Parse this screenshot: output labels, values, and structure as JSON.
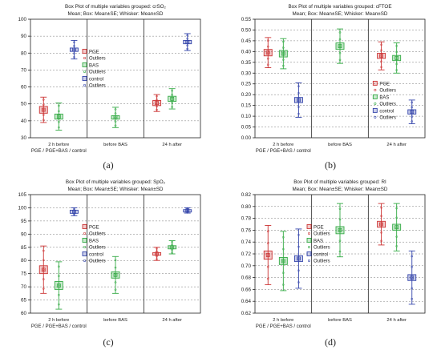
{
  "figure": {
    "panels": [
      {
        "label": "(a)",
        "chart_data": {
          "type": "box",
          "title": "Box Plot of multiple variables grouped: crSO₂",
          "subtitle": "Mean; Box: Mean±SE; Whisker: Mean±SD",
          "xlabel": "PGE / PGE+BAS / control",
          "categories": [
            "2 h before",
            "before BAS",
            "24 h after"
          ],
          "ylim": [
            30,
            100
          ],
          "yticks": [
            30,
            40,
            50,
            60,
            70,
            80,
            90,
            100
          ],
          "legend_position": "center",
          "series": [
            {
              "name": "PGE",
              "color": "#cc3333",
              "marker": "square",
              "values": [
                {
                  "mean": 46.5,
                  "se": 2,
                  "sd": 7.5
                },
                null,
                {
                  "mean": 50.5,
                  "se": 1.5,
                  "sd": 5
                }
              ]
            },
            {
              "name": "BAS",
              "color": "#33aa44",
              "marker": "square",
              "values": [
                {
                  "mean": 42.5,
                  "se": 1.5,
                  "sd": 8
                },
                {
                  "mean": 42,
                  "se": 1,
                  "sd": 6
                },
                {
                  "mean": 53,
                  "se": 1.5,
                  "sd": 6
                }
              ]
            },
            {
              "name": "control",
              "color": "#3344aa",
              "marker": "square",
              "values": [
                {
                  "mean": 82,
                  "se": 1,
                  "sd": 5.5
                },
                null,
                {
                  "mean": 86.5,
                  "se": 1,
                  "sd": 5
                }
              ]
            }
          ],
          "outliers_labels": [
            "Outliers",
            "Outliers",
            "Outliers"
          ]
        }
      },
      {
        "label": "(b)",
        "chart_data": {
          "type": "box",
          "title": "Box Plot of multiple variables grouped: cFTOE",
          "subtitle": "Mean; Box: Mean±SE; Whisker: Mean±SD",
          "xlabel": "PGE / PGE+BAS / control",
          "categories": [
            "2 h before",
            "before BAS",
            "24 h after"
          ],
          "ylim": [
            0.0,
            0.55
          ],
          "yticks": [
            0.0,
            0.05,
            0.1,
            0.15,
            0.2,
            0.25,
            0.3,
            0.35,
            0.4,
            0.45,
            0.5,
            0.55
          ],
          "legend_position": "right",
          "series": [
            {
              "name": "PGE",
              "color": "#cc3333",
              "marker": "square",
              "values": [
                {
                  "mean": 0.395,
                  "se": 0.015,
                  "sd": 0.07
                },
                null,
                {
                  "mean": 0.38,
                  "se": 0.012,
                  "sd": 0.065
                }
              ]
            },
            {
              "name": "BAS",
              "color": "#33aa44",
              "marker": "square",
              "values": [
                {
                  "mean": 0.39,
                  "se": 0.015,
                  "sd": 0.07
                },
                {
                  "mean": 0.425,
                  "se": 0.015,
                  "sd": 0.08
                },
                {
                  "mean": 0.37,
                  "se": 0.012,
                  "sd": 0.07
                }
              ]
            },
            {
              "name": "control",
              "color": "#3344aa",
              "marker": "square",
              "values": [
                {
                  "mean": 0.175,
                  "se": 0.012,
                  "sd": 0.08
                },
                null,
                {
                  "mean": 0.12,
                  "se": 0.01,
                  "sd": 0.055
                }
              ]
            }
          ],
          "outliers_labels": [
            "Outliers",
            "Outliers",
            "Outliers"
          ]
        }
      },
      {
        "label": "(c)",
        "chart_data": {
          "type": "box",
          "title": "Box Plot of multiple variables grouped: SpO₂",
          "subtitle": "Mean; Box: Mean±SE; Whisker: Mean±SD",
          "xlabel": "PGE / PGE+BAS / control",
          "categories": [
            "2 h before",
            "before BAS",
            "24 h after"
          ],
          "ylim": [
            60,
            105
          ],
          "yticks": [
            60,
            65,
            70,
            75,
            80,
            85,
            90,
            95,
            100,
            105
          ],
          "legend_position": "center",
          "series": [
            {
              "name": "PGE",
              "color": "#cc3333",
              "marker": "square",
              "values": [
                {
                  "mean": 76.5,
                  "se": 1.5,
                  "sd": 9
                },
                null,
                {
                  "mean": 82.5,
                  "se": 0.5,
                  "sd": 2.5
                }
              ]
            },
            {
              "name": "BAS",
              "color": "#33aa44",
              "marker": "square",
              "values": [
                {
                  "mean": 70.5,
                  "se": 1.5,
                  "sd": 9
                },
                {
                  "mean": 74.5,
                  "se": 1.2,
                  "sd": 7
                },
                {
                  "mean": 85,
                  "se": 0.6,
                  "sd": 2.5
                }
              ]
            },
            {
              "name": "control",
              "color": "#3344aa",
              "marker": "square",
              "values": [
                {
                  "mean": 98.5,
                  "se": 0.6,
                  "sd": 1.5
                },
                null,
                {
                  "mean": 99,
                  "se": 0.3,
                  "sd": 1
                }
              ]
            }
          ],
          "outliers_labels": [
            "Outliers",
            "Outliers",
            "Outliers"
          ]
        }
      },
      {
        "label": "(d)",
        "chart_data": {
          "type": "box",
          "title": "Box Plot of multiple variables grouped: RI",
          "subtitle": "Mean; Box: Mean±SE; Whisker: Mean±SD",
          "xlabel": "PGE / PGE+BAS / control",
          "categories": [
            "2 h before",
            "before BAS",
            "24 h after"
          ],
          "ylim": [
            0.62,
            0.82
          ],
          "yticks": [
            0.62,
            0.64,
            0.66,
            0.68,
            0.7,
            0.72,
            0.74,
            0.76,
            0.78,
            0.8,
            0.82
          ],
          "legend_position": "center",
          "series": [
            {
              "name": "PGE",
              "color": "#cc3333",
              "marker": "square",
              "values": [
                {
                  "mean": 0.718,
                  "se": 0.007,
                  "sd": 0.05
                },
                null,
                {
                  "mean": 0.77,
                  "se": 0.005,
                  "sd": 0.035
                }
              ]
            },
            {
              "name": "BAS",
              "color": "#33aa44",
              "marker": "square",
              "values": [
                {
                  "mean": 0.708,
                  "se": 0.006,
                  "sd": 0.05
                },
                {
                  "mean": 0.76,
                  "se": 0.006,
                  "sd": 0.045
                },
                {
                  "mean": 0.765,
                  "se": 0.005,
                  "sd": 0.04
                }
              ]
            },
            {
              "name": "control",
              "color": "#3344aa",
              "marker": "square",
              "values": [
                {
                  "mean": 0.712,
                  "se": 0.005,
                  "sd": 0.05
                },
                null,
                {
                  "mean": 0.68,
                  "se": 0.005,
                  "sd": 0.045
                }
              ]
            }
          ],
          "outliers_labels": [
            "Outliers",
            "Outliers",
            "Outliers"
          ]
        }
      }
    ]
  }
}
